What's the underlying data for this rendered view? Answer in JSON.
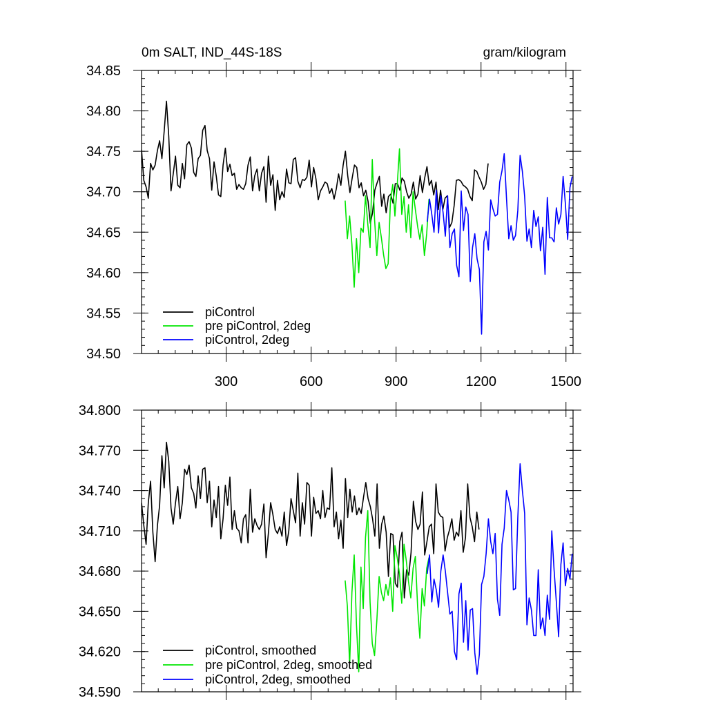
{
  "chart_data": [
    {
      "type": "line",
      "title": "0m SALT, IND_44S-18S",
      "units": "gram/kilogram",
      "xlabel": "",
      "ylabel": "",
      "xlim": [
        1,
        1525
      ],
      "ylim": [
        34.5,
        34.85
      ],
      "xticks": [
        300,
        600,
        900,
        1200,
        1500
      ],
      "yticks": [
        "34.50",
        "34.55",
        "34.60",
        "34.65",
        "34.70",
        "34.75",
        "34.80",
        "34.85"
      ],
      "legend_position": "bottom-left",
      "series": [
        {
          "name": "piControl",
          "color": "#000000",
          "x_start": 1,
          "x_step": 8,
          "values": [
            34.752,
            34.714,
            34.706,
            34.692,
            34.735,
            34.727,
            34.733,
            34.751,
            34.763,
            34.741,
            34.775,
            34.812,
            34.769,
            34.701,
            34.722,
            34.744,
            34.708,
            34.705,
            34.735,
            34.716,
            34.758,
            34.762,
            34.754,
            34.724,
            34.719,
            34.741,
            34.745,
            34.776,
            34.782,
            34.751,
            34.741,
            34.702,
            34.737,
            34.719,
            34.696,
            34.694,
            34.733,
            34.754,
            34.725,
            34.734,
            34.72,
            34.723,
            34.703,
            34.709,
            34.705,
            34.703,
            34.71,
            34.733,
            34.743,
            34.701,
            34.72,
            34.728,
            34.701,
            34.723,
            34.731,
            34.687,
            34.744,
            34.708,
            34.721,
            34.677,
            34.714,
            34.69,
            34.7,
            34.693,
            34.728,
            34.711,
            34.71,
            34.74,
            34.742,
            34.713,
            34.705,
            34.715,
            34.714,
            34.718,
            34.739,
            34.706,
            34.73,
            34.716,
            34.69,
            34.701,
            34.706,
            34.712,
            34.71,
            34.698,
            34.704,
            34.691,
            34.704,
            34.722,
            34.708,
            34.733,
            34.75,
            34.72,
            34.699,
            34.717,
            34.733,
            34.73,
            34.705,
            34.711,
            34.695,
            34.702,
            34.688,
            34.661,
            34.674,
            34.702,
            34.711,
            34.719,
            34.682,
            34.697,
            34.674,
            34.694,
            34.697,
            34.686,
            34.71,
            34.71,
            34.702,
            34.717,
            34.713,
            34.7,
            34.692,
            34.697,
            34.712,
            34.691,
            34.697,
            34.72,
            34.699,
            34.717,
            34.731,
            34.708,
            34.714,
            34.696,
            34.712,
            34.678,
            34.702,
            34.678,
            34.692,
            34.695,
            34.656,
            34.662,
            34.683,
            34.714,
            34.715,
            34.713,
            34.708,
            34.706,
            34.703,
            34.694,
            34.689,
            34.727,
            34.725,
            34.718,
            34.712,
            34.703,
            34.709,
            34.735
          ]
        },
        {
          "name": "pre piControl, 2deg",
          "color": "#00e600",
          "x_start": 720,
          "x_step": 8,
          "values": [
            34.689,
            34.642,
            34.67,
            34.635,
            34.582,
            34.642,
            34.6,
            34.655,
            34.65,
            34.695,
            34.66,
            34.631,
            34.74,
            34.666,
            34.621,
            34.662,
            34.643,
            34.622,
            34.605,
            34.611,
            34.689,
            34.709,
            34.67,
            34.708,
            34.753,
            34.672,
            34.694,
            34.65,
            34.684,
            34.643,
            34.7,
            34.678,
            34.657,
            34.641,
            34.659,
            34.621,
            34.648,
            34.691
          ]
        },
        {
          "name": "piControl, 2deg",
          "color": "#0000ff",
          "x_start": 1010,
          "x_step": 8,
          "values": [
            34.663,
            34.691,
            34.672,
            34.65,
            34.702,
            34.649,
            34.695,
            34.674,
            34.645,
            34.695,
            34.631,
            34.648,
            34.654,
            34.609,
            34.595,
            34.701,
            34.652,
            34.681,
            34.672,
            34.589,
            34.631,
            34.648,
            34.617,
            34.604,
            34.524,
            34.638,
            34.651,
            34.628,
            34.69,
            34.679,
            34.67,
            34.672,
            34.712,
            34.726,
            34.747,
            34.692,
            34.642,
            34.658,
            34.64,
            34.646,
            34.677,
            34.745,
            34.725,
            34.694,
            34.639,
            34.654,
            34.631,
            34.677,
            34.657,
            34.669,
            34.627,
            34.656,
            34.598,
            34.693,
            34.643,
            34.643,
            34.638,
            34.68,
            34.66,
            34.672,
            34.719,
            34.685,
            34.641,
            34.705,
            34.719
          ]
        }
      ]
    },
    {
      "type": "line",
      "title": "",
      "xlabel": "",
      "ylabel": "",
      "xlim": [
        1,
        1525
      ],
      "ylim": [
        34.59,
        34.8
      ],
      "xticks": [
        300,
        600,
        900,
        1200,
        1500
      ],
      "yticks": [
        "34.590",
        "34.620",
        "34.650",
        "34.680",
        "34.710",
        "34.740",
        "34.770",
        "34.800"
      ],
      "legend_position": "bottom-left",
      "series": [
        {
          "name": "piControl, smoothed",
          "color": "#000000",
          "x_start": 1,
          "x_step": 8,
          "values": [
            34.731,
            34.714,
            34.7,
            34.731,
            34.747,
            34.709,
            34.687,
            34.714,
            34.729,
            34.766,
            34.742,
            34.776,
            34.762,
            34.727,
            34.715,
            34.731,
            34.743,
            34.719,
            34.731,
            34.756,
            34.752,
            34.759,
            34.742,
            34.738,
            34.727,
            34.751,
            34.734,
            34.756,
            34.757,
            34.731,
            34.747,
            34.713,
            34.733,
            34.72,
            34.743,
            34.704,
            34.719,
            34.744,
            34.729,
            34.75,
            34.711,
            34.725,
            34.712,
            34.71,
            34.701,
            34.719,
            34.722,
            34.701,
            34.741,
            34.709,
            34.719,
            34.714,
            34.711,
            34.715,
            34.73,
            34.69,
            34.708,
            34.731,
            34.722,
            34.711,
            34.708,
            34.713,
            34.706,
            34.724,
            34.699,
            34.71,
            34.734,
            34.725,
            34.716,
            34.753,
            34.706,
            34.731,
            34.715,
            34.746,
            34.744,
            34.706,
            34.735,
            34.723,
            34.725,
            34.719,
            34.74,
            34.72,
            34.727,
            34.726,
            34.757,
            34.713,
            34.724,
            34.704,
            34.718,
            34.697,
            34.749,
            34.72,
            34.741,
            34.724,
            34.736,
            34.722,
            34.727,
            34.723,
            34.735,
            34.746,
            34.734,
            34.728,
            34.719,
            34.706,
            34.745,
            34.697,
            34.715,
            34.721,
            34.709,
            34.676,
            34.708,
            34.707,
            34.671,
            34.668,
            34.702,
            34.709,
            34.66,
            34.681,
            34.677,
            34.694,
            34.732,
            34.717,
            34.711,
            34.715,
            34.739,
            34.692,
            34.702,
            34.713,
            34.715,
            34.693,
            34.745,
            34.724,
            34.721,
            34.72,
            34.695,
            34.705,
            34.711,
            34.719,
            34.703,
            34.709,
            34.706,
            34.725,
            34.694,
            34.705,
            34.745,
            34.72,
            34.713,
            34.702,
            34.724,
            34.711
          ]
        },
        {
          "name": "pre piControl, 2deg, smoothed",
          "color": "#00e600",
          "x_start": 720,
          "x_step": 8,
          "values": [
            34.673,
            34.654,
            34.61,
            34.664,
            34.692,
            34.64,
            34.605,
            34.683,
            34.652,
            34.705,
            34.725,
            34.657,
            34.626,
            34.617,
            34.643,
            34.676,
            34.664,
            34.658,
            34.67,
            34.662,
            34.675,
            34.65,
            34.699,
            34.69,
            34.678,
            34.656,
            34.7,
            34.688,
            34.672,
            34.66,
            34.682,
            34.691,
            34.653,
            34.63,
            34.667,
            34.654,
            34.682,
            34.69
          ]
        },
        {
          "name": "piControl, 2deg, smoothed",
          "color": "#0000ff",
          "x_start": 1010,
          "x_step": 8,
          "values": [
            34.678,
            34.692,
            34.657,
            34.674,
            34.666,
            34.653,
            34.68,
            34.692,
            34.68,
            34.664,
            34.648,
            34.65,
            34.62,
            34.614,
            34.663,
            34.671,
            34.627,
            34.658,
            34.621,
            34.651,
            34.652,
            34.619,
            34.603,
            34.618,
            34.67,
            34.676,
            34.693,
            34.719,
            34.702,
            34.693,
            34.708,
            34.659,
            34.647,
            34.7,
            34.712,
            34.74,
            34.733,
            34.724,
            34.666,
            34.667,
            34.72,
            34.76,
            34.74,
            34.723,
            34.64,
            34.66,
            34.651,
            34.632,
            34.632,
            34.681,
            34.637,
            34.645,
            34.632,
            34.662,
            34.644,
            34.71,
            34.681,
            34.657,
            34.631,
            34.685,
            34.701,
            34.669,
            34.682,
            34.674,
            34.693
          ]
        }
      ]
    }
  ]
}
